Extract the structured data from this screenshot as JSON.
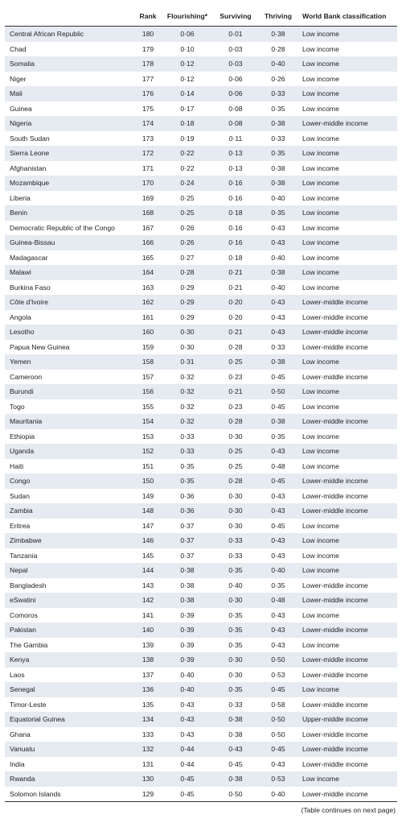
{
  "table": {
    "header": [
      "",
      "Rank",
      "Flourishing*",
      "Surviving",
      "Thriving",
      "World Bank classification"
    ],
    "rows": [
      [
        "Central African Republic",
        "180",
        "0·06",
        "0·01",
        "0·38",
        "Low income"
      ],
      [
        "Chad",
        "179",
        "0·10",
        "0·03",
        "0·28",
        "Low income"
      ],
      [
        "Somalia",
        "178",
        "0·12",
        "0·03",
        "0·40",
        "Low income"
      ],
      [
        "Niger",
        "177",
        "0·12",
        "0·06",
        "0·26",
        "Low income"
      ],
      [
        "Mali",
        "176",
        "0·14",
        "0·06",
        "0·33",
        "Low income"
      ],
      [
        "Guinea",
        "175",
        "0·17",
        "0·08",
        "0·35",
        "Low income"
      ],
      [
        "Nigeria",
        "174",
        "0·18",
        "0·08",
        "0·38",
        "Lower-middle income"
      ],
      [
        "South Sudan",
        "173",
        "0·19",
        "0·11",
        "0·33",
        "Low income"
      ],
      [
        "Sierra Leone",
        "172",
        "0·22",
        "0·13",
        "0·35",
        "Low income"
      ],
      [
        "Afghanistan",
        "171",
        "0·22",
        "0·13",
        "0·38",
        "Low income"
      ],
      [
        "Mozambique",
        "170",
        "0·24",
        "0·16",
        "0·38",
        "Low income"
      ],
      [
        "Liberia",
        "169",
        "0·25",
        "0·16",
        "0·40",
        "Low income"
      ],
      [
        "Benin",
        "168",
        "0·25",
        "0·18",
        "0·35",
        "Low income"
      ],
      [
        "Democratic Republic of the Congo",
        "167",
        "0·26",
        "0·16",
        "0·43",
        "Low income"
      ],
      [
        "Guinea-Bissau",
        "166",
        "0·26",
        "0·16",
        "0·43",
        "Low income"
      ],
      [
        "Madagascar",
        "165",
        "0·27",
        "0·18",
        "0·40",
        "Low income"
      ],
      [
        "Malawi",
        "164",
        "0·28",
        "0·21",
        "0·38",
        "Low income"
      ],
      [
        "Burkina Faso",
        "163",
        "0·29",
        "0·21",
        "0·40",
        "Low income"
      ],
      [
        "Côte d'Ivoire",
        "162",
        "0·29",
        "0·20",
        "0·43",
        "Lower-middle income"
      ],
      [
        "Angola",
        "161",
        "0·29",
        "0·20",
        "0·43",
        "Lower-middle income"
      ],
      [
        "Lesotho",
        "160",
        "0·30",
        "0·21",
        "0·43",
        "Lower-middle income"
      ],
      [
        "Papua New Guinea",
        "159",
        "0·30",
        "0·28",
        "0·33",
        "Lower-middle income"
      ],
      [
        "Yemen",
        "158",
        "0·31",
        "0·25",
        "0·38",
        "Low income"
      ],
      [
        "Cameroon",
        "157",
        "0·32",
        "0·23",
        "0·45",
        "Lower-middle income"
      ],
      [
        "Burundi",
        "156",
        "0·32",
        "0·21",
        "0·50",
        "Low income"
      ],
      [
        "Togo",
        "155",
        "0·32",
        "0·23",
        "0·45",
        "Low income"
      ],
      [
        "Mauritania",
        "154",
        "0·32",
        "0·28",
        "0·38",
        "Lower-middle income"
      ],
      [
        "Ethiopia",
        "153",
        "0·33",
        "0·30",
        "0·35",
        "Low income"
      ],
      [
        "Uganda",
        "152",
        "0·33",
        "0·25",
        "0·43",
        "Low income"
      ],
      [
        "Haiti",
        "151",
        "0·35",
        "0·25",
        "0·48",
        "Low income"
      ],
      [
        "Congo",
        "150",
        "0·35",
        "0·28",
        "0·45",
        "Lower-middle income"
      ],
      [
        "Sudan",
        "149",
        "0·36",
        "0·30",
        "0·43",
        "Lower-middle income"
      ],
      [
        "Zambia",
        "148",
        "0·36",
        "0·30",
        "0·43",
        "Lower-middle income"
      ],
      [
        "Eritrea",
        "147",
        "0·37",
        "0·30",
        "0·45",
        "Low income"
      ],
      [
        "Zimbabwe",
        "146",
        "0·37",
        "0·33",
        "0·43",
        "Low income"
      ],
      [
        "Tanzania",
        "145",
        "0·37",
        "0·33",
        "0·43",
        "Low income"
      ],
      [
        "Nepal",
        "144",
        "0·38",
        "0·35",
        "0·40",
        "Low income"
      ],
      [
        "Bangladesh",
        "143",
        "0·38",
        "0·40",
        "0·35",
        "Lower-middle income"
      ],
      [
        "eSwatini",
        "142",
        "0·38",
        "0·30",
        "0·48",
        "Lower-middle income"
      ],
      [
        "Comoros",
        "141",
        "0·39",
        "0·35",
        "0·43",
        "Low income"
      ],
      [
        "Pakistan",
        "140",
        "0·39",
        "0·35",
        "0·43",
        "Lower-middle income"
      ],
      [
        "The Gambia",
        "139",
        "0·39",
        "0·35",
        "0·43",
        "Low income"
      ],
      [
        "Kenya",
        "138",
        "0·39",
        "0·30",
        "0·50",
        "Lower-middle income"
      ],
      [
        "Laos",
        "137",
        "0·40",
        "0·30",
        "0·53",
        "Lower-middle income"
      ],
      [
        "Senegal",
        "136",
        "0·40",
        "0·35",
        "0·45",
        "Low income"
      ],
      [
        "Timor-Leste",
        "135",
        "0·43",
        "0·33",
        "0·58",
        "Lower-middle income"
      ],
      [
        "Equatorial Guinea",
        "134",
        "0·43",
        "0·38",
        "0·50",
        "Upper-middle income"
      ],
      [
        "Ghana",
        "133",
        "0·43",
        "0·38",
        "0·50",
        "Lower-middle income"
      ],
      [
        "Vanuatu",
        "132",
        "0·44",
        "0·43",
        "0·45",
        "Lower-middle income"
      ],
      [
        "India",
        "131",
        "0·44",
        "0·45",
        "0·43",
        "Lower-middle income"
      ],
      [
        "Rwanda",
        "130",
        "0·45",
        "0·38",
        "0·53",
        "Low income"
      ],
      [
        "Solomon Islands",
        "129",
        "0·45",
        "0·50",
        "0·40",
        "Lower-middle income"
      ]
    ]
  },
  "footer": "(Table continues on next page)"
}
